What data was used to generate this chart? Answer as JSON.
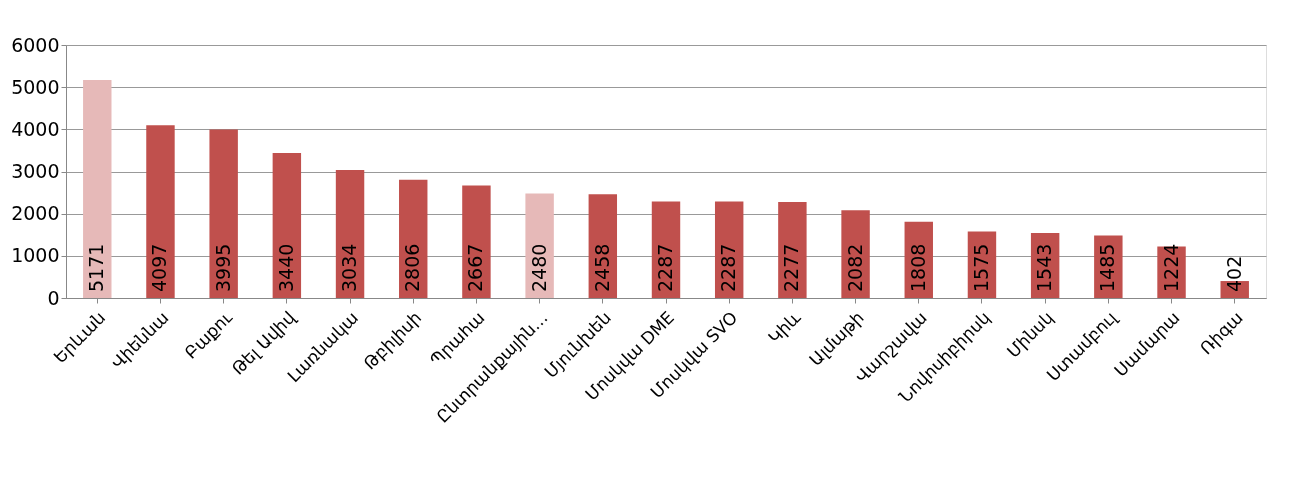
{
  "chart_data": {
    "type": "bar",
    "categories": [
      "Երևան",
      "Վիեննա",
      "Բաքու",
      "Թել Ավիվ",
      "Լառնակա",
      "Թբիլիսի",
      "Պրահա",
      "Ընտրանքային…",
      "Մյունխեն",
      "Մոսկվա DME",
      "Մոսկվա SVO",
      "Կիև",
      "Ալմաթի",
      "Վարշավա",
      "Նովոսիբիրսկ",
      "Մինսկ",
      "Ստամբուլ",
      "Սամարա",
      "Ռիգա"
    ],
    "values": [
      5171,
      4097,
      3995,
      3440,
      3034,
      2806,
      2667,
      2480,
      2458,
      2287,
      2287,
      2277,
      2082,
      1808,
      1575,
      1543,
      1485,
      1224,
      402
    ],
    "colors": [
      "#e6b9b8",
      "#c0504d",
      "#c0504d",
      "#c0504d",
      "#c0504d",
      "#c0504d",
      "#c0504d",
      "#e6b9b8",
      "#c0504d",
      "#c0504d",
      "#c0504d",
      "#c0504d",
      "#c0504d",
      "#c0504d",
      "#c0504d",
      "#c0504d",
      "#c0504d",
      "#c0504d",
      "#c0504d"
    ],
    "ylim": [
      0,
      6000
    ],
    "yticks": [
      0,
      1000,
      2000,
      3000,
      4000,
      5000,
      6000
    ],
    "grid": "y",
    "data_labels": true
  }
}
